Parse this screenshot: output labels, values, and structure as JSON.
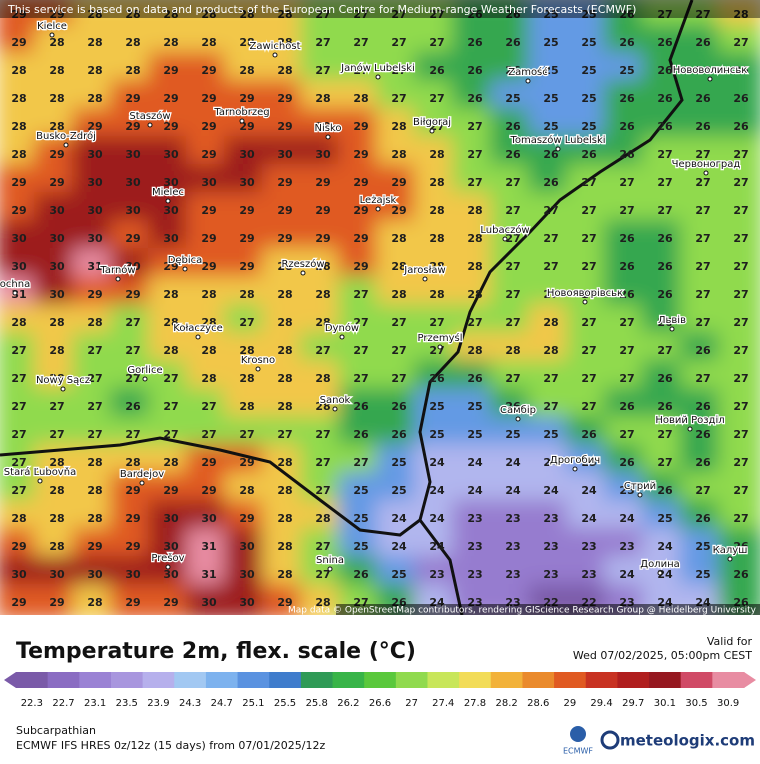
{
  "header": {
    "notice": "This service is based on data and products of the European Centre for Medium-range Weather Forecasts (ECMWF)"
  },
  "attribution": "Map data © OpenStreetMap contributors, rendering GIScience Research Group @ Heidelberg University",
  "grid": {
    "rows": [
      [
        29,
        29,
        28,
        28,
        28,
        28,
        28,
        28,
        27,
        27,
        27,
        27,
        26,
        26,
        25,
        25,
        26,
        27,
        27,
        28
      ],
      [
        29,
        28,
        28,
        28,
        28,
        28,
        28,
        28,
        27,
        27,
        27,
        27,
        26,
        26,
        25,
        25,
        26,
        26,
        26,
        27
      ],
      [
        28,
        28,
        28,
        28,
        29,
        29,
        28,
        28,
        27,
        27,
        27,
        26,
        26,
        26,
        25,
        25,
        25,
        26,
        26,
        26
      ],
      [
        28,
        28,
        28,
        29,
        29,
        29,
        29,
        29,
        28,
        28,
        27,
        27,
        26,
        25,
        25,
        25,
        26,
        26,
        26,
        26
      ],
      [
        28,
        28,
        29,
        29,
        29,
        29,
        29,
        29,
        29,
        29,
        28,
        27,
        27,
        26,
        25,
        25,
        26,
        26,
        26,
        26
      ],
      [
        28,
        29,
        30,
        30,
        30,
        29,
        30,
        30,
        30,
        29,
        28,
        28,
        27,
        26,
        26,
        26,
        26,
        27,
        27,
        27
      ],
      [
        29,
        29,
        30,
        30,
        30,
        30,
        30,
        29,
        29,
        29,
        29,
        28,
        27,
        27,
        26,
        27,
        27,
        27,
        27,
        27
      ],
      [
        29,
        30,
        30,
        30,
        30,
        29,
        29,
        29,
        29,
        29,
        29,
        28,
        28,
        27,
        27,
        27,
        27,
        27,
        27,
        27
      ],
      [
        30,
        30,
        30,
        29,
        30,
        29,
        29,
        29,
        29,
        29,
        28,
        28,
        28,
        27,
        27,
        27,
        26,
        26,
        27,
        27
      ],
      [
        30,
        30,
        31,
        30,
        29,
        29,
        29,
        28,
        28,
        29,
        28,
        28,
        28,
        27,
        27,
        27,
        26,
        26,
        27,
        27
      ],
      [
        31,
        30,
        29,
        29,
        28,
        28,
        28,
        28,
        28,
        27,
        28,
        28,
        28,
        27,
        27,
        27,
        26,
        26,
        27,
        27
      ],
      [
        28,
        28,
        28,
        27,
        28,
        28,
        27,
        28,
        28,
        27,
        27,
        27,
        27,
        27,
        28,
        27,
        27,
        26,
        27,
        27
      ],
      [
        27,
        28,
        27,
        27,
        28,
        28,
        28,
        28,
        27,
        27,
        27,
        27,
        28,
        28,
        28,
        27,
        27,
        27,
        26,
        27
      ],
      [
        27,
        28,
        27,
        27,
        27,
        28,
        28,
        28,
        28,
        27,
        27,
        26,
        26,
        27,
        27,
        27,
        27,
        26,
        27,
        27
      ],
      [
        27,
        27,
        27,
        26,
        27,
        27,
        28,
        28,
        28,
        26,
        26,
        25,
        25,
        26,
        27,
        27,
        26,
        26,
        26,
        27
      ],
      [
        27,
        27,
        27,
        27,
        27,
        27,
        27,
        27,
        27,
        26,
        26,
        25,
        25,
        25,
        25,
        26,
        27,
        27,
        26,
        27
      ],
      [
        27,
        28,
        28,
        28,
        28,
        29,
        29,
        28,
        27,
        27,
        25,
        24,
        24,
        24,
        24,
        25,
        26,
        27,
        26,
        27
      ],
      [
        27,
        28,
        28,
        29,
        29,
        29,
        28,
        28,
        27,
        25,
        25,
        24,
        24,
        24,
        24,
        24,
        25,
        26,
        27,
        27
      ],
      [
        28,
        28,
        28,
        29,
        30,
        30,
        29,
        28,
        28,
        25,
        24,
        24,
        23,
        23,
        23,
        24,
        24,
        25,
        26,
        27
      ],
      [
        29,
        28,
        29,
        29,
        30,
        31,
        30,
        28,
        27,
        25,
        24,
        24,
        23,
        23,
        23,
        23,
        23,
        24,
        25,
        26
      ],
      [
        30,
        30,
        30,
        30,
        30,
        31,
        30,
        28,
        27,
        26,
        25,
        23,
        23,
        23,
        23,
        23,
        24,
        24,
        25,
        26
      ],
      [
        29,
        29,
        28,
        29,
        29,
        30,
        30,
        29,
        28,
        27,
        26,
        24,
        23,
        23,
        22,
        22,
        23,
        24,
        24,
        26
      ]
    ]
  },
  "cities": [
    "Kielce",
    "Zawichost",
    "Janów Lubelski",
    "Zamość",
    "Нововолинськ",
    "Staszów",
    "Tarnobrzeg",
    "Nisko",
    "Biłgoraj",
    "Tomaszów Lubelski",
    "Busko-Zdrój",
    "Червоноград",
    "Mielec",
    "Leżajsk",
    "Lubaczów",
    "Dębica",
    "Rzeszów",
    "Jarosław",
    "Tarnów",
    "ochna",
    "Новояворівськ",
    "Львів",
    "Kołaczyce",
    "Dynów",
    "Przemyśl",
    "Krosno",
    "Gorlice",
    "Nowy Sącz",
    "Sanok",
    "Самбір",
    "Новий Розділ",
    "Stará Ľubovňa",
    "Bardejov",
    "Дрогобич",
    "Стрий",
    "Prešov",
    "Snina",
    "Калуш",
    "Долина"
  ],
  "panel": {
    "title": "Temperature 2m, flex. scale (°C)",
    "valid_label": "Valid for",
    "valid_time": "Wed 07/02/2025, 05:00pm CEST",
    "region": "Subcarpathian",
    "model": "ECMWF IFS HRES 0z/12z (15 days) from 07/01/2025/12z",
    "ecmwf_logo": "ECMWF",
    "brand": "meteologix.com"
  },
  "legend": {
    "ticks": [
      22.3,
      22.7,
      23.1,
      23.5,
      23.9,
      24.3,
      24.7,
      25.1,
      25.5,
      25.8,
      26.2,
      26.6,
      27,
      27.4,
      27.8,
      28.2,
      28.6,
      29,
      29.4,
      29.7,
      30.1,
      30.5,
      30.9
    ],
    "colors": [
      "#7a5aa8",
      "#8a6cc2",
      "#9a82d4",
      "#a896de",
      "#b6b0ec",
      "#a2c8f2",
      "#7db2ee",
      "#5a92e0",
      "#3f7ccc",
      "#2f9a56",
      "#38b448",
      "#5ac83c",
      "#90da4e",
      "#c8e65a",
      "#f2dc58",
      "#f2b23a",
      "#ea8a2c",
      "#e05a22",
      "#c83222",
      "#b01e1e",
      "#961820",
      "#d04a66",
      "#e88ca2"
    ]
  }
}
